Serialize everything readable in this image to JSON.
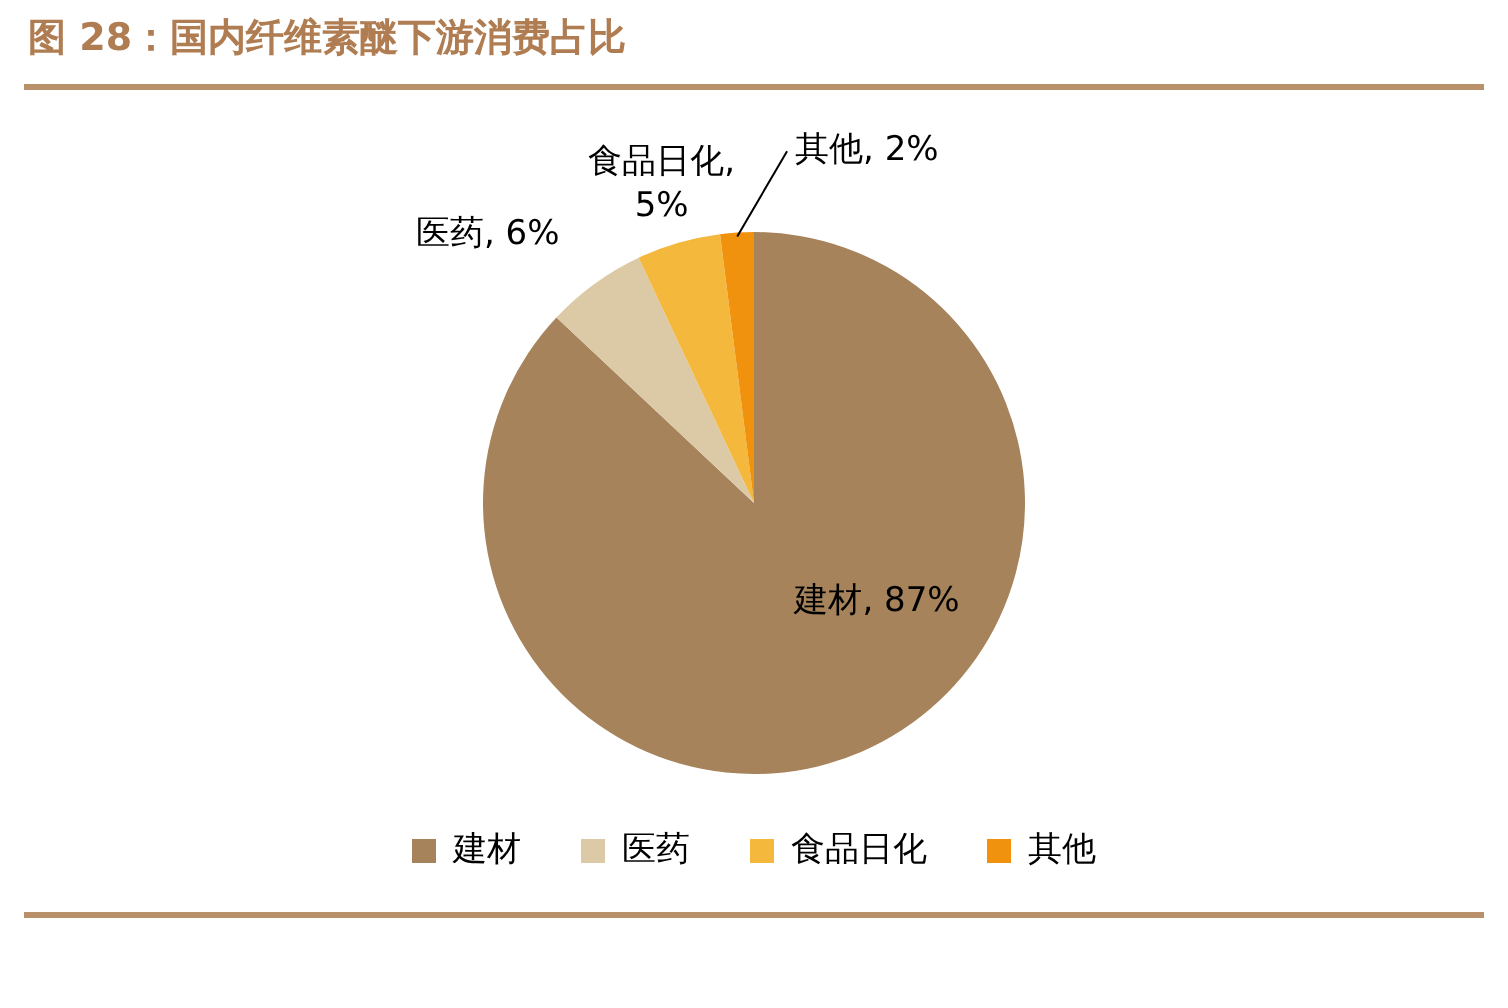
{
  "chart_data": {
    "type": "pie",
    "title": "图 28：国内纤维素醚下游消费占比",
    "categories": [
      "建材",
      "医药",
      "食品日化",
      "其他"
    ],
    "values": [
      87,
      6,
      5,
      2
    ],
    "colors": [
      "#a6835b",
      "#dccaa6",
      "#f4b83c",
      "#f0920e"
    ],
    "value_labels": [
      "建材, 87%",
      "医药, 6%",
      "食品日化, 5%",
      "其他, 2%"
    ],
    "legend": "bottom"
  }
}
